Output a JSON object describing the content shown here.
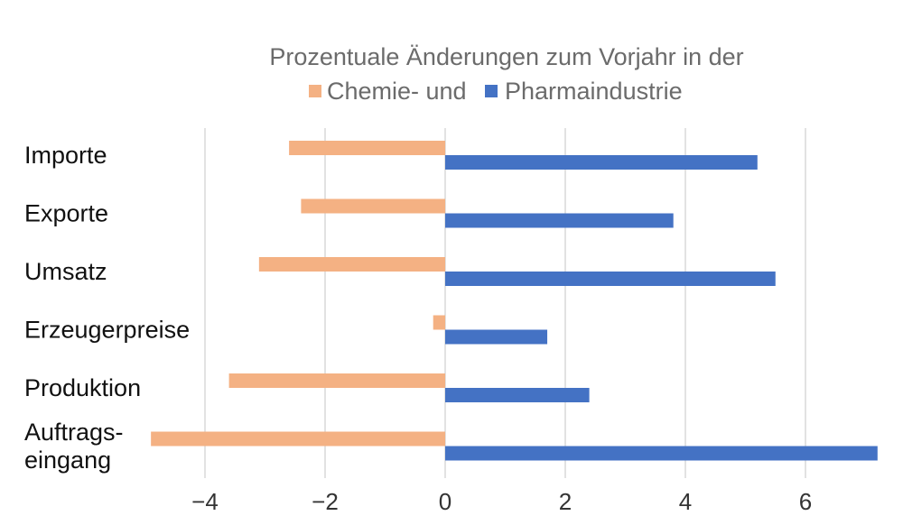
{
  "chart_data": {
    "type": "bar",
    "orientation": "horizontal",
    "title": "Prozentuale Änderungen zum Vorjahr in der",
    "categories": [
      [
        "Importe"
      ],
      [
        "Exporte"
      ],
      [
        "Umsatz"
      ],
      [
        "Erzeugerpreise"
      ],
      [
        "Produktion"
      ],
      [
        "Auftrags-",
        "eingang"
      ]
    ],
    "series": [
      {
        "name": "Chemie-  und",
        "color": "#F4B183",
        "values": [
          -2.6,
          -2.4,
          -3.1,
          -0.2,
          -3.6,
          -4.9
        ]
      },
      {
        "name": "Pharmaindustrie",
        "color": "#4472C4",
        "values": [
          5.2,
          3.8,
          5.5,
          1.7,
          2.4,
          7.2
        ]
      }
    ],
    "xticks": [
      "−4",
      "−2",
      "0",
      "2",
      "4",
      "6"
    ],
    "xtick_values": [
      -4,
      -2,
      0,
      2,
      4,
      6
    ],
    "xlim": [
      -5,
      7.2
    ],
    "grid": "vertical",
    "legend": "top-center"
  }
}
